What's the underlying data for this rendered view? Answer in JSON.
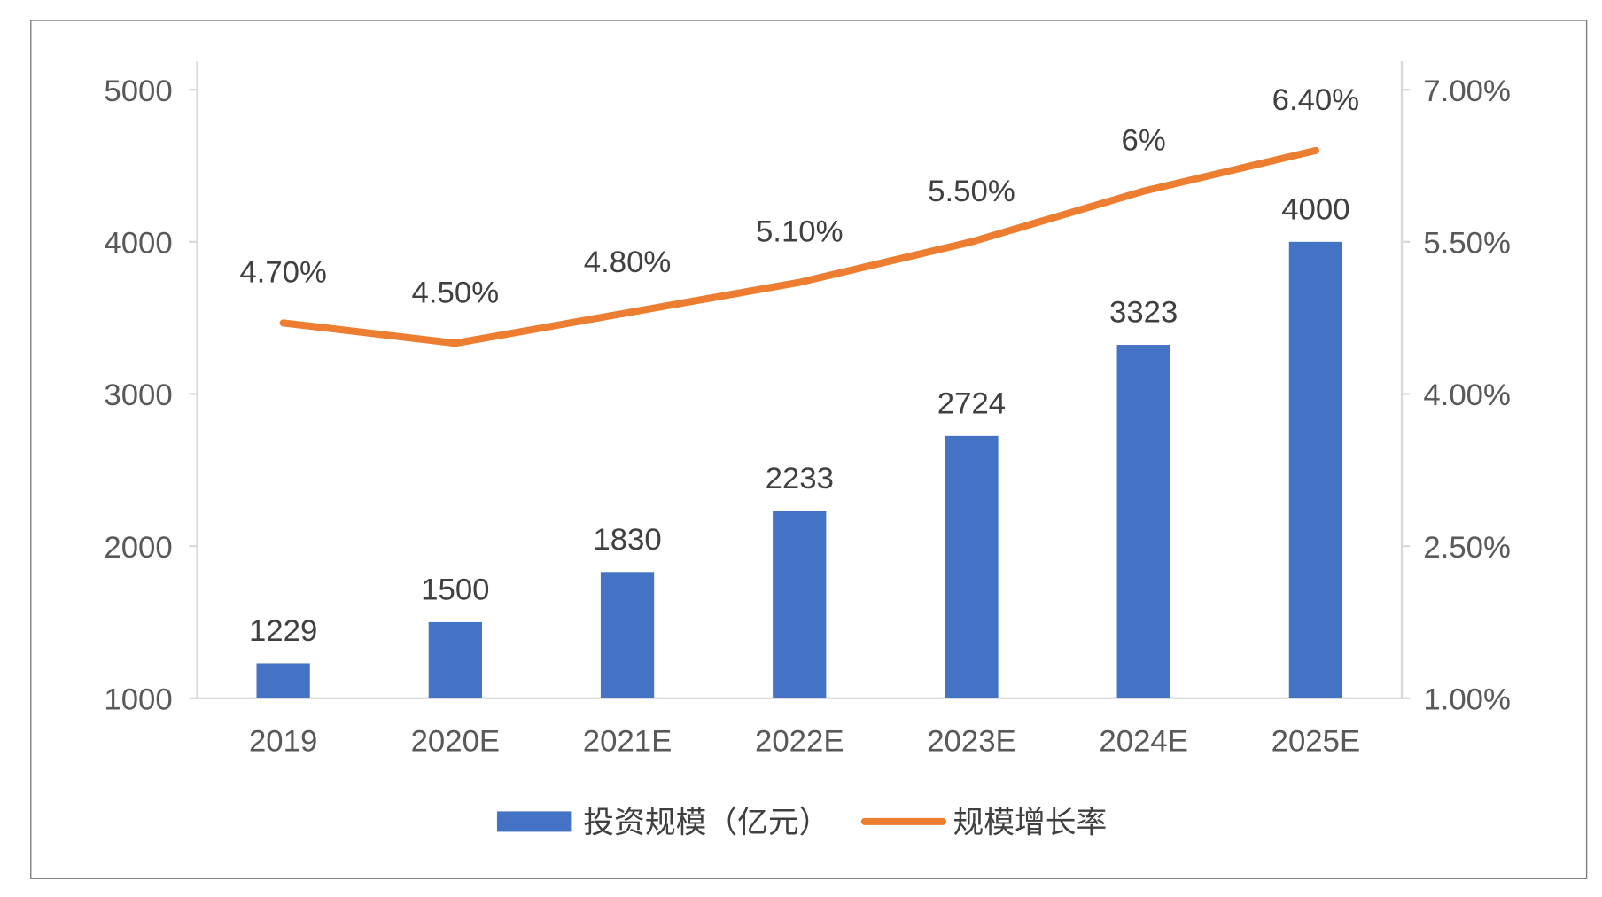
{
  "chart_data": {
    "type": "bar+line",
    "categories": [
      "2019",
      "2020E",
      "2021E",
      "2022E",
      "2023E",
      "2024E",
      "2025E"
    ],
    "series": [
      {
        "name": "投资规模（亿元）",
        "type": "bar",
        "axis": "left",
        "values": [
          1229,
          1500,
          1830,
          2233,
          2724,
          3323,
          4000
        ],
        "labels": [
          "1229",
          "1500",
          "1830",
          "2233",
          "2724",
          "3323",
          "4000"
        ],
        "color": "#4472C4"
      },
      {
        "name": "规模增长率",
        "type": "line",
        "axis": "right",
        "values": [
          4.7,
          4.5,
          4.8,
          5.1,
          5.5,
          6.0,
          6.4
        ],
        "labels": [
          "4.70%",
          "4.50%",
          "4.80%",
          "5.10%",
          "5.50%",
          "6%",
          "6.40%"
        ],
        "color": "#ED7D31"
      }
    ],
    "left_axis": {
      "ylim": [
        1000,
        5000
      ],
      "ticks": [
        "1000",
        "2000",
        "3000",
        "4000",
        "5000"
      ],
      "tick_values": [
        1000,
        2000,
        3000,
        4000,
        5000
      ]
    },
    "right_axis": {
      "ylim": [
        1.0,
        7.0
      ],
      "ticks": [
        "1.00%",
        "2.50%",
        "4.00%",
        "5.50%",
        "7.00%"
      ],
      "tick_values": [
        1.0,
        2.5,
        4.0,
        5.5,
        7.0
      ]
    },
    "grid": false,
    "legend": {
      "placement": "bottom",
      "items": [
        "投资规模（亿元）",
        "规模增长率"
      ]
    }
  }
}
